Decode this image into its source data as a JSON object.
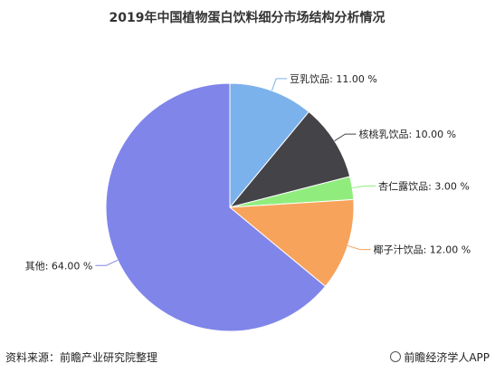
{
  "chart_data": {
    "type": "pie",
    "title": "2019年中国植物蛋白饮料细分市场结构分析情况",
    "slices": [
      {
        "label": "豆乳饮品",
        "value": 11.0,
        "display": "豆乳饮品: 11.00 %",
        "color": "#7cb2ec"
      },
      {
        "label": "核桃乳饮品",
        "value": 10.0,
        "display": "核桃乳饮品: 10.00 %",
        "color": "#434348"
      },
      {
        "label": "杏仁露饮品",
        "value": 3.0,
        "display": "杏仁露饮品: 3.00 %",
        "color": "#90ed7d"
      },
      {
        "label": "椰子汁饮品",
        "value": 12.0,
        "display": "椰子汁饮品: 12.00 %",
        "color": "#f7a35c"
      },
      {
        "label": "其他",
        "value": 64.0,
        "display": "其他: 64.00 %",
        "color": "#8085e9"
      }
    ]
  },
  "footer": {
    "source": "资料来源：前瞻产业研究院整理",
    "brand": "前瞻经济学人APP"
  }
}
